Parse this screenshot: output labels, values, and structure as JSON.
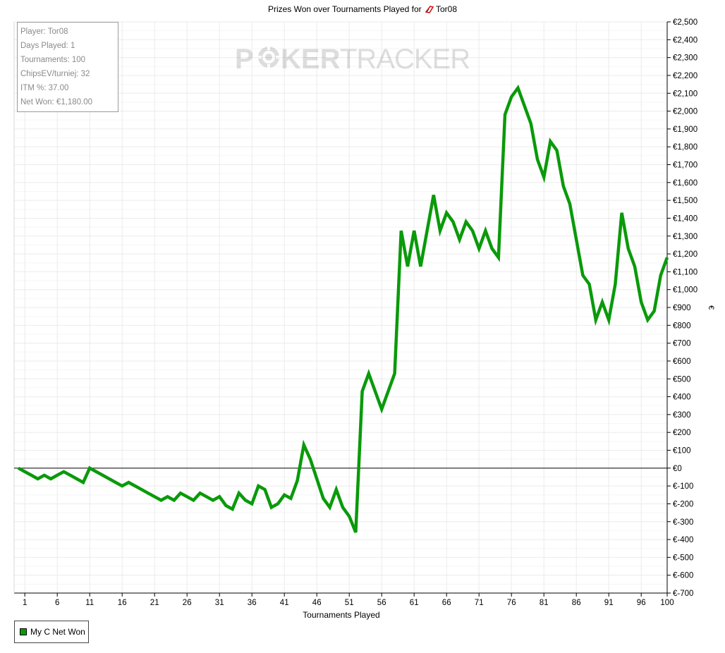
{
  "chart_data": {
    "type": "line",
    "title": "Prizes Won over Tournaments Played for",
    "player_name": "Tor08",
    "xlabel": "Tournaments Played",
    "ylabel": "€",
    "xlim": [
      0,
      100
    ],
    "ylim": [
      -700,
      2500
    ],
    "x_ticks": [
      1,
      6,
      11,
      16,
      21,
      26,
      31,
      36,
      41,
      46,
      51,
      56,
      61,
      66,
      71,
      76,
      81,
      86,
      91,
      96,
      100
    ],
    "y_ticks": [
      -700,
      -600,
      -500,
      -400,
      -300,
      -200,
      -100,
      0,
      100,
      200,
      300,
      400,
      500,
      600,
      700,
      800,
      900,
      1000,
      1100,
      1200,
      1300,
      1400,
      1500,
      1600,
      1700,
      1800,
      1900,
      2000,
      2100,
      2200,
      2300,
      2400,
      2500
    ],
    "y_tick_labels": [
      "€-700",
      "€-600",
      "€-500",
      "€-400",
      "€-300",
      "€-200",
      "€-100",
      "€0",
      "€100",
      "€200",
      "€300",
      "€400",
      "€500",
      "€600",
      "€700",
      "€800",
      "€900",
      "€1,000",
      "€1,100",
      "€1,200",
      "€1,300",
      "€1,400",
      "€1,500",
      "€1,600",
      "€1,700",
      "€1,800",
      "€1,900",
      "€2,000",
      "€2,100",
      "€2,200",
      "€2,300",
      "€2,400",
      "€2,500"
    ],
    "grid": true,
    "zero_line": true,
    "series": [
      {
        "name": "My C Net Won",
        "color": "#0a9a0a",
        "x": [
          0,
          1,
          2,
          3,
          4,
          5,
          6,
          7,
          8,
          9,
          10,
          11,
          12,
          13,
          14,
          15,
          16,
          17,
          18,
          19,
          20,
          21,
          22,
          23,
          24,
          25,
          26,
          27,
          28,
          29,
          30,
          31,
          32,
          33,
          34,
          35,
          36,
          37,
          38,
          39,
          40,
          41,
          42,
          43,
          44,
          45,
          46,
          47,
          48,
          49,
          50,
          51,
          52,
          53,
          54,
          55,
          56,
          57,
          58,
          59,
          60,
          61,
          62,
          63,
          64,
          65,
          66,
          67,
          68,
          69,
          70,
          71,
          72,
          73,
          74,
          75,
          76,
          77,
          78,
          79,
          80,
          81,
          82,
          83,
          84,
          85,
          86,
          87,
          88,
          89,
          90,
          91,
          92,
          93,
          94,
          95,
          96,
          97,
          98,
          99,
          100
        ],
        "values": [
          0,
          -20,
          -40,
          -60,
          -40,
          -60,
          -40,
          -20,
          -40,
          -60,
          -80,
          0,
          -20,
          -40,
          -60,
          -80,
          -100,
          -80,
          -100,
          -120,
          -140,
          -160,
          -180,
          -160,
          -180,
          -140,
          -160,
          -180,
          -140,
          -160,
          -180,
          -160,
          -210,
          -230,
          -140,
          -180,
          -200,
          -100,
          -120,
          -220,
          -200,
          -150,
          -170,
          -70,
          130,
          50,
          -60,
          -170,
          -220,
          -120,
          -220,
          -270,
          -360,
          430,
          530,
          430,
          330,
          430,
          530,
          1330,
          1130,
          1330,
          1130,
          1330,
          1530,
          1330,
          1430,
          1380,
          1280,
          1380,
          1330,
          1230,
          1330,
          1230,
          1180,
          1980,
          2080,
          2130,
          2030,
          1930,
          1730,
          1630,
          1830,
          1780,
          1580,
          1480,
          1280,
          1080,
          1030,
          830,
          930,
          830,
          1030,
          1430,
          1230,
          1130,
          930,
          830,
          880,
          1080,
          1180
        ]
      }
    ],
    "legend_placement": "bottom-left"
  },
  "stats": {
    "player": "Player: Tor08",
    "days_played": "Days Played: 1",
    "tournaments": "Tournaments: 100",
    "chips_ev": "ChipsEV/turniej: 32",
    "itm": "ITM %: 37.00",
    "net_won": "Net Won: €1,180.00"
  },
  "watermark": {
    "part1": "P",
    "part2": "KER",
    "part3": "TRACKER",
    "icon": "poker-chip-icon"
  },
  "legend": {
    "label": "My C Net Won",
    "swatch_color": "#0a9a0a"
  },
  "player_icon": "player-badge-icon"
}
